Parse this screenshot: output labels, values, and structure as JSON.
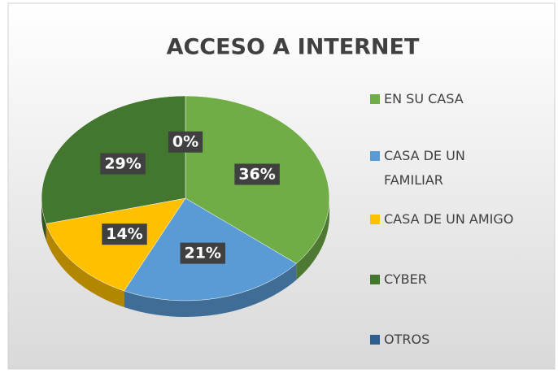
{
  "chart_data": {
    "type": "pie",
    "title": "ACCESO A INTERNET",
    "categories": [
      "EN SU CASA",
      "CASA DE UN FAMILIAR",
      "CASA DE UN AMIGO",
      "CYBER",
      "OTROS"
    ],
    "values": [
      36,
      21,
      14,
      29,
      0
    ],
    "value_labels": [
      "36%",
      "21%",
      "14%",
      "29%",
      "0%"
    ],
    "colors": [
      "#70ad47",
      "#5b9bd5",
      "#ffc000",
      "#43772f",
      "#2f5f91"
    ],
    "legend": "right"
  }
}
